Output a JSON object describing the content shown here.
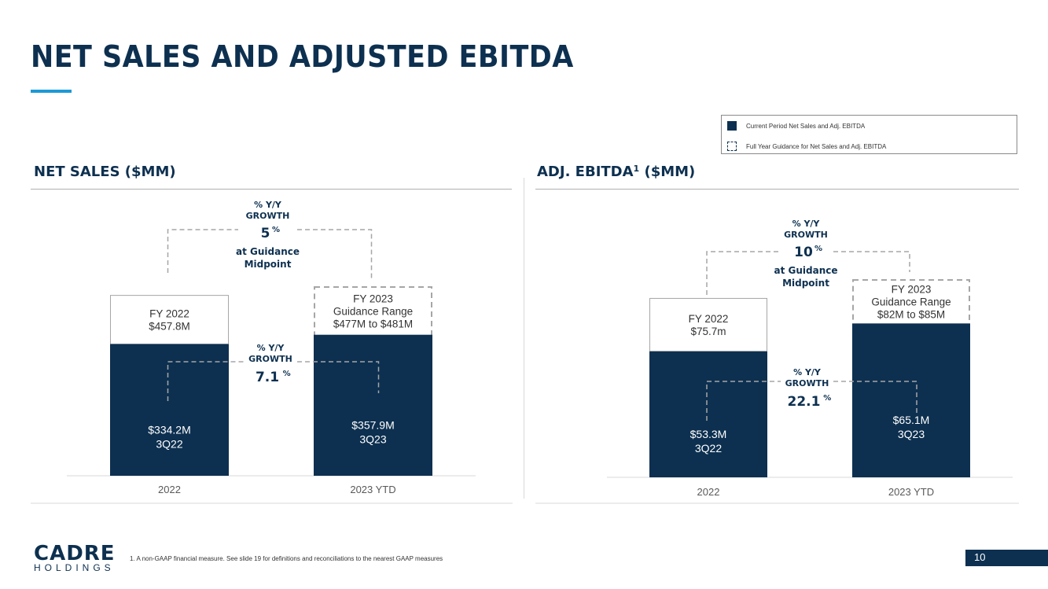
{
  "title": "NET SALES AND ADJUSTED EBITDA",
  "legend": {
    "current": "Current Period Net Sales and Adj. EBITDA",
    "guidance": "Full Year Guidance for Net Sales and Adj. EBITDA"
  },
  "colors": {
    "navy": "#0d3050",
    "accent": "#1b9ad6",
    "dash": "#a6a6a6"
  },
  "chart_data": [
    {
      "type": "bar",
      "title": "NET SALES ($MM)",
      "categories": [
        "2022",
        "2023 YTD"
      ],
      "series": [
        {
          "name": "Current Period Net Sales and Adj. EBITDA",
          "values": [
            334.2,
            357.9
          ]
        },
        {
          "name": "Full Year Guidance for Net Sales and Adj. EBITDA",
          "values": [
            457.8,
            479
          ]
        }
      ],
      "ylim": [
        0,
        479
      ],
      "bar_labels": [
        {
          "current_value": "$334.2M",
          "current_period": "3Q22",
          "full_year": [
            "FY 2022",
            "$457.8M"
          ]
        },
        {
          "current_value": "$357.9M",
          "current_period": "3Q23",
          "full_year": [
            "FY 2023",
            "Guidance Range",
            "$477M to $481M"
          ]
        }
      ],
      "top_growth": {
        "label": [
          "% Y/Y",
          "GROWTH"
        ],
        "value": "5",
        "unit": "%",
        "note": [
          "at Guidance",
          "Midpoint"
        ]
      },
      "mid_growth": {
        "label": [
          "% Y/Y",
          "GROWTH"
        ],
        "value": "7.1",
        "unit": "%"
      }
    },
    {
      "type": "bar",
      "title": "ADJ. EBITDA",
      "title_sup": "1",
      "title_suffix": " ($MM)",
      "categories": [
        "2022",
        "2023 YTD"
      ],
      "series": [
        {
          "name": "Current Period Net Sales and Adj. EBITDA",
          "values": [
            53.3,
            65.1
          ]
        },
        {
          "name": "Full Year Guidance for Net Sales and Adj. EBITDA",
          "values": [
            75.7,
            83.5
          ]
        }
      ],
      "ylim": [
        0,
        83.5
      ],
      "bar_labels": [
        {
          "current_value": "$53.3M",
          "current_period": "3Q22",
          "full_year": [
            "FY 2022",
            "$75.7m"
          ]
        },
        {
          "current_value": "$65.1M",
          "current_period": "3Q23",
          "full_year": [
            "FY 2023",
            "Guidance Range",
            "$82M to $85M"
          ]
        }
      ],
      "top_growth": {
        "label": [
          "% Y/Y",
          "GROWTH"
        ],
        "value": "10",
        "unit": "%",
        "note": [
          "at Guidance",
          "Midpoint"
        ]
      },
      "mid_growth": {
        "label": [
          "% Y/Y",
          "GROWTH"
        ],
        "value": "22.1",
        "unit": "%"
      }
    }
  ],
  "footnote": "1.     A non-GAAP financial measure. See slide 19 for definitions and reconciliations to the nearest GAAP measures",
  "page_number": "10",
  "logo": {
    "main": "CADRE",
    "sub": "HOLDINGS"
  }
}
